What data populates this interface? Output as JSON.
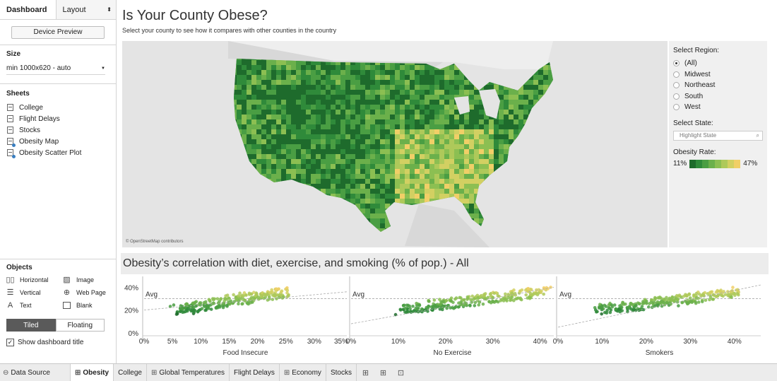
{
  "left_panel": {
    "tabs": {
      "dashboard": "Dashboard",
      "layout": "Layout",
      "layout_arrow": "⬍"
    },
    "device_preview": "Device Preview",
    "size": {
      "title": "Size",
      "value": "min 1000x620 - auto",
      "arrow": "▼"
    },
    "sheets": {
      "title": "Sheets",
      "items": [
        {
          "label": "College",
          "icon": "worksheet-icon"
        },
        {
          "label": "Flight Delays",
          "icon": "worksheet-icon"
        },
        {
          "label": "Stocks",
          "icon": "worksheet-icon"
        },
        {
          "label": "Obesity Map",
          "icon": "worksheet-used-icon"
        },
        {
          "label": "Obesity Scatter Plot",
          "icon": "worksheet-used-icon"
        }
      ]
    },
    "objects": {
      "title": "Objects",
      "items": [
        {
          "label": "Horizontal",
          "glyph": "▯▯"
        },
        {
          "label": "Image",
          "glyph": "▨"
        },
        {
          "label": "Vertical",
          "glyph": "☰"
        },
        {
          "label": "Web Page",
          "glyph": "⊕"
        },
        {
          "label": "Text",
          "glyph": "A"
        },
        {
          "label": "Blank",
          "glyph": ""
        }
      ],
      "tiled": "Tiled",
      "floating": "Floating",
      "show_title": "Show dashboard title",
      "show_title_checked": "✓"
    }
  },
  "main": {
    "title": "Is Your County Obese?",
    "subtitle": "Select your county to see how it compares with other counties in the country",
    "map_credit": "© OpenStreetMap contributors",
    "filters": {
      "region_title": "Select Region:",
      "regions": [
        "(All)",
        "Midwest",
        "Northeast",
        "South",
        "West"
      ],
      "selected_region": "(All)",
      "state_title": "Select State:",
      "state_placeholder": "Highlight State",
      "rate_title": "Obesity Rate:",
      "rate_min": "11%",
      "rate_max": "47%",
      "rate_colors": [
        "#1e6b2c",
        "#2f8a3a",
        "#4a9e43",
        "#6bb04b",
        "#8cbf52",
        "#aec95a",
        "#d2d062",
        "#f1cf67"
      ]
    },
    "scatter_title": "Obesity’s correlation with diet, exercise, and smoking (% of pop.) - All"
  },
  "chart_data": {
    "type": "scatter",
    "y_ticks": [
      "40%",
      "20%",
      "0%"
    ],
    "ylim": [
      0,
      47
    ],
    "reference_line_label": "Avg",
    "panels": [
      {
        "xlabel": "Food Insecure",
        "x_ticks": [
          "0%",
          "5%",
          "10%",
          "15%",
          "20%",
          "25%",
          "30%",
          "35%"
        ],
        "xlim": [
          0,
          35
        ],
        "cluster_x": [
          6,
          25
        ],
        "trend_y": [
          20,
          36
        ]
      },
      {
        "xlabel": "No Exercise",
        "x_ticks": [
          "0%",
          "10%",
          "20%",
          "30%",
          "40%"
        ],
        "xlim": [
          0,
          42
        ],
        "cluster_x": [
          10,
          41
        ],
        "trend_y": [
          8,
          40
        ]
      },
      {
        "xlabel": "Smokers",
        "x_ticks": [
          "0%",
          "10%",
          "20%",
          "30%",
          "40%"
        ],
        "xlim": [
          0,
          45
        ],
        "cluster_x": [
          9,
          42
        ],
        "trend_y": [
          5,
          42
        ]
      }
    ]
  },
  "bottom_tabs": {
    "data_source": "Data Source",
    "tabs": [
      {
        "label": "Obesity",
        "icon": "dashboard-icon",
        "active": true
      },
      {
        "label": "College",
        "icon": "",
        "active": false
      },
      {
        "label": "Global Temperatures",
        "icon": "dashboard-icon",
        "active": false
      },
      {
        "label": "Flight Delays",
        "icon": "",
        "active": false
      },
      {
        "label": "Economy",
        "icon": "dashboard-icon",
        "active": false
      },
      {
        "label": "Stocks",
        "icon": "",
        "active": false
      }
    ]
  }
}
